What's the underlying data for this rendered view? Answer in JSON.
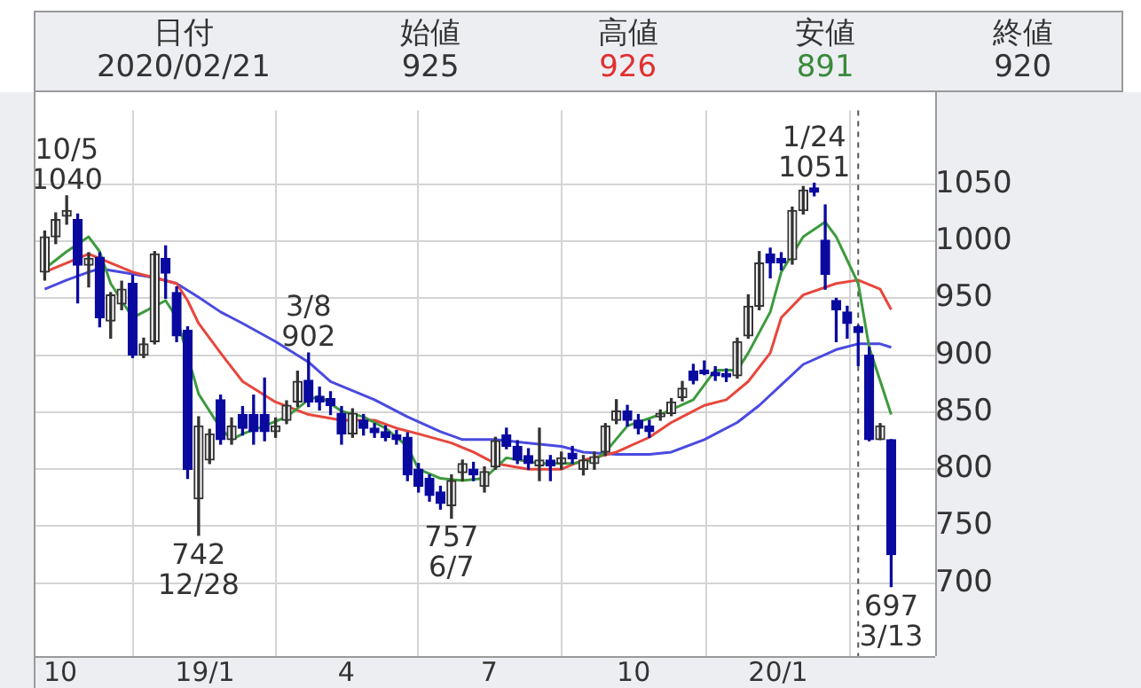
{
  "chart_data": {
    "type": "candlestick",
    "annotations": [
      "日付",
      "2020/02/21",
      "始値",
      "925",
      "高値",
      "926",
      "安値",
      "891",
      "終値",
      "920",
      {
        "text": "10/5\n1040",
        "x": "2018-10-05",
        "y": 1040
      },
      {
        "text": "742\n12/28",
        "x": "2018-12-28",
        "y": 742
      },
      {
        "text": "3/8\n902",
        "x": "2019-03-08",
        "y": 902
      },
      {
        "text": "757\n6/7",
        "x": "2019-06-07",
        "y": 757
      },
      {
        "text": "1/24\n1051",
        "x": "2020-01-24",
        "y": 1051
      },
      {
        "text": "697\n3/13",
        "x": "2020-03-13",
        "y": 697
      }
    ],
    "xlim": [
      "2018-09-14",
      "2020-04-10"
    ],
    "xticks": [
      {
        "value": "2018-10-01",
        "label": "10"
      },
      {
        "value": "2019-01-01",
        "label": "19/1"
      },
      {
        "value": "2019-04-01",
        "label": "4"
      },
      {
        "value": "2019-07-01",
        "label": "7"
      },
      {
        "value": "2019-10-01",
        "label": "10"
      },
      {
        "value": "2020-01-01",
        "label": "20/1"
      }
    ],
    "ylim": [
      636,
      1115
    ],
    "yticks": [
      700,
      750,
      800,
      850,
      900,
      950,
      1000,
      1050
    ],
    "grid": true,
    "ref_lines": [
      {
        "axis": "x",
        "value": "2020-02-21",
        "label": null,
        "color": "#555555",
        "line_style": "dashed"
      }
    ],
    "series": [
      {
        "x": [
          "2018-09-21",
          "2018-09-28",
          "2018-10-05",
          "2018-10-12",
          "2018-10-19",
          "2018-10-26",
          "2018-11-02",
          "2018-11-09",
          "2018-11-16",
          "2018-11-23",
          "2018-11-30",
          "2018-12-07",
          "2018-12-14",
          "2018-12-21",
          "2018-12-28",
          "2019-01-04",
          "2019-01-11",
          "2019-01-18",
          "2019-01-25",
          "2019-02-01",
          "2019-02-08",
          "2019-02-15",
          "2019-02-22",
          "2019-03-01",
          "2019-03-08",
          "2019-03-15",
          "2019-03-22",
          "2019-03-29",
          "2019-04-05",
          "2019-04-12",
          "2019-04-19",
          "2019-04-26",
          "2019-05-03",
          "2019-05-10",
          "2019-05-17",
          "2019-05-24",
          "2019-05-31",
          "2019-06-07",
          "2019-06-14",
          "2019-06-21",
          "2019-06-28",
          "2019-07-05",
          "2019-07-12",
          "2019-07-19",
          "2019-07-26",
          "2019-08-02",
          "2019-08-09",
          "2019-08-16",
          "2019-08-23",
          "2019-08-30",
          "2019-09-06",
          "2019-09-13",
          "2019-09-20",
          "2019-09-27",
          "2019-10-04",
          "2019-10-11",
          "2019-10-18",
          "2019-10-25",
          "2019-11-01",
          "2019-11-08",
          "2019-11-15",
          "2019-11-22",
          "2019-11-29",
          "2019-12-06",
          "2019-12-13",
          "2019-12-20",
          "2019-12-27",
          "2020-01-03",
          "2020-01-10",
          "2020-01-17",
          "2020-01-24",
          "2020-01-31",
          "2020-02-07",
          "2020-02-14",
          "2020-02-21",
          "2020-02-28",
          "2020-03-06",
          "2020-03-13"
        ],
        "ohlc": [
          [
            973,
            1009,
            966,
            1004
          ],
          [
            1004,
            1025,
            998,
            1019
          ],
          [
            1022,
            1040,
            1015,
            1027
          ],
          [
            1019,
            1024,
            946,
            979
          ],
          [
            979,
            990,
            960,
            985
          ],
          [
            986,
            990,
            925,
            933
          ],
          [
            930,
            955,
            915,
            953
          ],
          [
            945,
            965,
            940,
            958
          ],
          [
            963,
            970,
            898,
            900
          ],
          [
            900,
            915,
            898,
            910
          ],
          [
            912,
            991,
            910,
            989
          ],
          [
            985,
            996,
            950,
            972
          ],
          [
            955,
            960,
            912,
            917
          ],
          [
            922,
            925,
            792,
            800
          ],
          [
            774,
            846,
            742,
            838
          ],
          [
            808,
            835,
            805,
            831
          ],
          [
            861,
            865,
            822,
            826
          ],
          [
            826,
            845,
            822,
            838
          ],
          [
            848,
            855,
            830,
            836
          ],
          [
            848,
            865,
            822,
            833
          ],
          [
            848,
            880,
            825,
            833
          ],
          [
            833,
            845,
            828,
            838
          ],
          [
            843,
            860,
            840,
            856
          ],
          [
            859,
            886,
            855,
            877
          ],
          [
            878,
            902,
            855,
            859
          ],
          [
            864,
            872,
            852,
            859
          ],
          [
            862,
            868,
            848,
            856
          ],
          [
            849,
            855,
            822,
            831
          ],
          [
            831,
            853,
            828,
            849
          ],
          [
            843,
            848,
            830,
            836
          ],
          [
            836,
            840,
            828,
            832
          ],
          [
            833,
            838,
            825,
            828
          ],
          [
            830,
            834,
            822,
            826
          ],
          [
            828,
            832,
            790,
            795
          ],
          [
            800,
            805,
            780,
            785
          ],
          [
            792,
            795,
            772,
            777
          ],
          [
            780,
            785,
            765,
            770
          ],
          [
            768,
            795,
            757,
            790
          ],
          [
            797,
            808,
            790,
            805
          ],
          [
            800,
            806,
            790,
            795
          ],
          [
            785,
            802,
            780,
            798
          ],
          [
            802,
            828,
            800,
            825
          ],
          [
            830,
            836,
            818,
            820
          ],
          [
            820,
            825,
            805,
            808
          ],
          [
            812,
            818,
            800,
            805
          ],
          [
            803,
            836,
            790,
            808
          ],
          [
            808,
            812,
            790,
            803
          ],
          [
            805,
            815,
            800,
            810
          ],
          [
            814,
            820,
            805,
            809
          ],
          [
            800,
            812,
            795,
            808
          ],
          [
            805,
            815,
            800,
            811
          ],
          [
            815,
            840,
            812,
            838
          ],
          [
            843,
            861,
            840,
            851
          ],
          [
            851,
            856,
            838,
            843
          ],
          [
            843,
            848,
            831,
            836
          ],
          [
            838,
            843,
            828,
            833
          ],
          [
            846,
            852,
            843,
            849
          ],
          [
            849,
            862,
            847,
            859
          ],
          [
            863,
            877,
            860,
            871
          ],
          [
            886,
            892,
            875,
            878
          ],
          [
            887,
            895,
            883,
            884
          ],
          [
            885,
            890,
            878,
            882
          ],
          [
            884,
            888,
            877,
            881
          ],
          [
            882,
            915,
            880,
            912
          ],
          [
            917,
            953,
            915,
            943
          ],
          [
            943,
            991,
            940,
            981
          ],
          [
            989,
            994,
            968,
            981
          ],
          [
            985,
            990,
            975,
            981
          ],
          [
            984,
            1030,
            980,
            1027
          ],
          [
            1027,
            1048,
            1024,
            1045
          ],
          [
            1047,
            1051,
            1040,
            1043
          ],
          [
            1001,
            1032,
            958,
            971
          ],
          [
            948,
            950,
            912,
            940
          ],
          [
            938,
            943,
            915,
            928
          ],
          [
            925,
            926,
            891,
            920
          ],
          [
            900,
            907,
            825,
            826
          ],
          [
            826,
            840,
            826,
            838
          ],
          [
            826,
            826,
            697,
            725
          ]
        ],
        "colors": [
          "#333333",
          "#333333",
          "#333333",
          "#0a0aa0",
          "#333333",
          "#0a0aa0",
          "#333333",
          "#333333",
          "#0a0aa0",
          "#333333",
          "#333333",
          "#0a0aa0",
          "#0a0aa0",
          "#0a0aa0",
          "#333333",
          "#333333",
          "#0a0aa0",
          "#333333",
          "#0a0aa0",
          "#0a0aa0",
          "#0a0aa0",
          "#333333",
          "#333333",
          "#333333",
          "#0a0aa0",
          "#0a0aa0",
          "#0a0aa0",
          "#0a0aa0",
          "#333333",
          "#0a0aa0",
          "#0a0aa0",
          "#0a0aa0",
          "#0a0aa0",
          "#0a0aa0",
          "#0a0aa0",
          "#0a0aa0",
          "#0a0aa0",
          "#333333",
          "#333333",
          "#0a0aa0",
          "#333333",
          "#333333",
          "#0a0aa0",
          "#0a0aa0",
          "#0a0aa0",
          "#333333",
          "#0a0aa0",
          "#333333",
          "#0a0aa0",
          "#333333",
          "#333333",
          "#333333",
          "#333333",
          "#0a0aa0",
          "#0a0aa0",
          "#0a0aa0",
          "#333333",
          "#333333",
          "#333333",
          "#0a0aa0",
          "#0a0aa0",
          "#0a0aa0",
          "#0a0aa0",
          "#333333",
          "#333333",
          "#333333",
          "#0a0aa0",
          "#0a0aa0",
          "#333333",
          "#333333",
          "#0a0aa0",
          "#0a0aa0",
          "#0a0aa0",
          "#0a0aa0",
          "#0a0aa0",
          "#0a0aa0",
          "#333333",
          "#0a0aa0"
        ]
      },
      {
        "type": "line",
        "color": "#3d9a3d",
        "x": [
          "2018-09-21",
          "2018-10-05",
          "2018-10-19",
          "2018-10-26",
          "2018-11-02",
          "2018-11-16",
          "2018-11-30",
          "2018-12-07",
          "2018-12-14",
          "2018-12-28",
          "2019-01-11",
          "2019-01-18",
          "2019-01-25",
          "2019-02-08",
          "2019-02-22",
          "2019-03-08",
          "2019-03-15",
          "2019-03-29",
          "2019-04-12",
          "2019-04-26",
          "2019-05-10",
          "2019-05-17",
          "2019-05-31",
          "2019-06-14",
          "2019-06-28",
          "2019-07-12",
          "2019-08-02",
          "2019-08-23",
          "2019-09-06",
          "2019-09-13",
          "2019-09-27",
          "2019-10-18",
          "2019-11-08",
          "2019-11-22",
          "2019-12-06",
          "2019-12-13",
          "2019-12-27",
          "2020-01-03",
          "2020-01-17",
          "2020-01-31",
          "2020-02-07",
          "2020-02-21",
          "2020-02-28",
          "2020-03-13"
        ],
        "values": [
          976,
          991,
          1004,
          991,
          963,
          933,
          943,
          948,
          933,
          866,
          836,
          826,
          831,
          838,
          846,
          861,
          864,
          851,
          846,
          836,
          820,
          800,
          792,
          790,
          792,
          810,
          805,
          805,
          808,
          815,
          838,
          848,
          861,
          887,
          887,
          902,
          938,
          973,
          1004,
          1017,
          1004,
          963,
          907,
          848
        ]
      },
      {
        "type": "line",
        "color": "#e8463c",
        "x": [
          "2018-09-21",
          "2018-10-05",
          "2018-10-19",
          "2018-11-02",
          "2018-11-16",
          "2018-11-30",
          "2018-12-14",
          "2018-12-21",
          "2018-12-28",
          "2019-01-11",
          "2019-01-25",
          "2019-02-15",
          "2019-03-08",
          "2019-03-29",
          "2019-04-19",
          "2019-05-03",
          "2019-05-17",
          "2019-06-07",
          "2019-06-21",
          "2019-07-05",
          "2019-07-26",
          "2019-08-16",
          "2019-08-30",
          "2019-09-20",
          "2019-10-11",
          "2019-10-25",
          "2019-11-15",
          "2019-11-29",
          "2019-12-13",
          "2019-12-27",
          "2020-01-03",
          "2020-01-17",
          "2020-02-07",
          "2020-02-21",
          "2020-03-06",
          "2020-03-13"
        ],
        "values": [
          973,
          981,
          989,
          981,
          973,
          968,
          963,
          948,
          928,
          902,
          877,
          859,
          848,
          843,
          843,
          836,
          831,
          823,
          815,
          805,
          800,
          800,
          808,
          815,
          828,
          841,
          856,
          861,
          877,
          902,
          933,
          953,
          963,
          966,
          958,
          940
        ]
      },
      {
        "type": "line",
        "color": "#4a4ae0",
        "x": [
          "2018-09-21",
          "2018-10-05",
          "2018-10-19",
          "2018-10-26",
          "2018-11-09",
          "2018-11-30",
          "2018-12-14",
          "2018-12-28",
          "2019-01-11",
          "2019-01-25",
          "2019-02-15",
          "2019-03-08",
          "2019-03-22",
          "2019-04-19",
          "2019-05-10",
          "2019-05-31",
          "2019-06-14",
          "2019-07-05",
          "2019-07-26",
          "2019-08-16",
          "2019-08-30",
          "2019-09-20",
          "2019-10-11",
          "2019-10-25",
          "2019-11-15",
          "2019-12-06",
          "2019-12-20",
          "2020-01-03",
          "2020-01-17",
          "2020-02-07",
          "2020-02-21",
          "2020-03-06",
          "2020-03-13"
        ],
        "values": [
          958,
          966,
          973,
          976,
          973,
          968,
          963,
          951,
          938,
          928,
          912,
          894,
          877,
          861,
          846,
          833,
          826,
          826,
          823,
          820,
          815,
          813,
          813,
          815,
          826,
          841,
          856,
          874,
          892,
          905,
          910,
          910,
          907
        ]
      }
    ]
  }
}
